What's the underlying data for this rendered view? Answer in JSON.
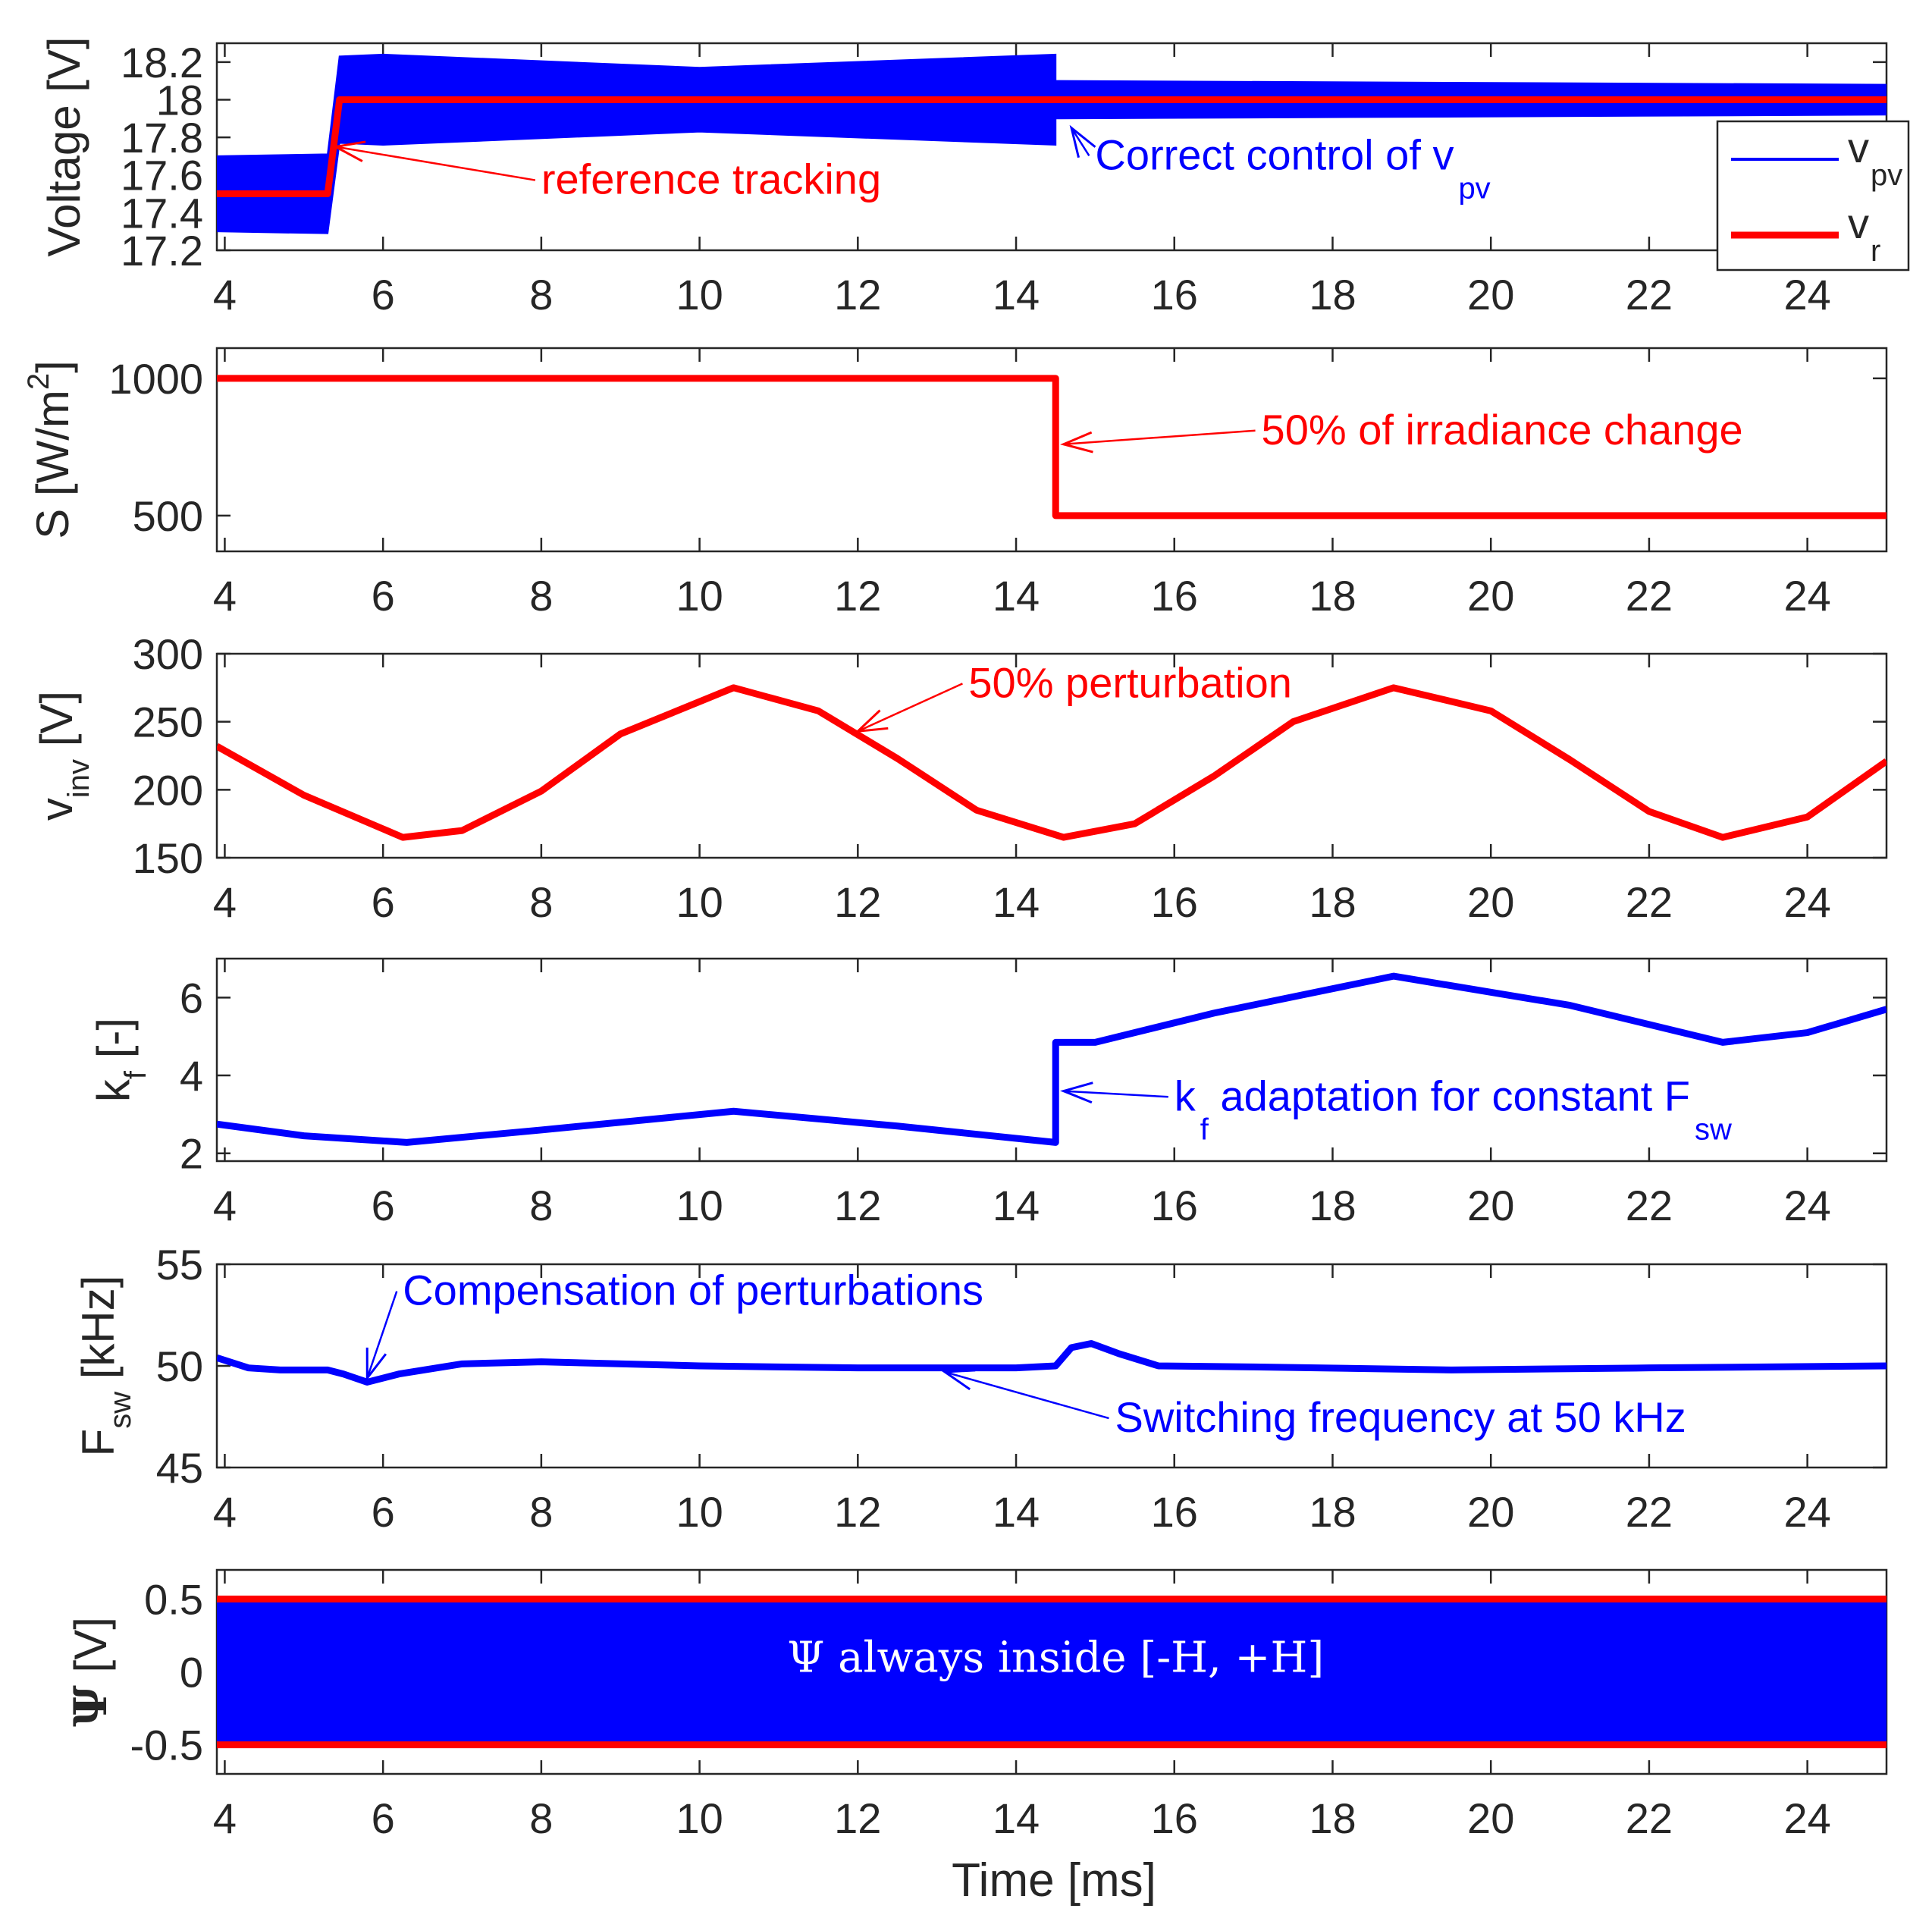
{
  "colors": {
    "blue": "#0000FF",
    "red": "#FF0000",
    "axis": "#262626"
  },
  "chart_data": [
    {
      "type": "line",
      "id": "voltage",
      "ylabel": "Voltage [V]",
      "xlim": [
        3.9,
        25
      ],
      "ylim": [
        17.2,
        18.3
      ],
      "xticks": [
        4,
        6,
        8,
        10,
        12,
        14,
        16,
        18,
        20,
        22,
        24
      ],
      "yticks": [
        17.2,
        17.4,
        17.6,
        17.8,
        18,
        18.2
      ],
      "ytick_labels": [
        "17.2",
        "17.4",
        "17.6",
        "17.8",
        "18",
        "18.2"
      ],
      "series": [
        {
          "name": "vpv",
          "label_main": "v",
          "label_sub": "pv",
          "color": "#0000FF",
          "style": "ripple-band",
          "x": [
            3.9,
            5.3,
            5.3,
            5.45,
            6.0,
            10.0,
            14.5,
            14.5,
            25.0
          ],
          "center": [
            17.5,
            17.5,
            17.5,
            18.0,
            18.0,
            18.0,
            18.0,
            18.0,
            18.0
          ],
          "half_width": [
            0.2,
            0.21,
            0.21,
            0.23,
            0.24,
            0.17,
            0.24,
            0.1,
            0.08
          ]
        },
        {
          "name": "vr",
          "label_main": "v",
          "label_sub": "r",
          "color": "#FF0000",
          "x": [
            3.9,
            5.3,
            5.45,
            25.0
          ],
          "y": [
            17.5,
            17.5,
            18.0,
            18.0
          ]
        }
      ],
      "annotations": [
        {
          "id": "reference-tracking",
          "text": "reference tracking",
          "color": "#FF0000",
          "x": 8.0,
          "y": 17.5,
          "arrow_to": [
            5.4,
            17.75
          ]
        },
        {
          "id": "correct-control",
          "text": "Correct control of v",
          "sub": "pv",
          "color": "#0000FF",
          "x": 15.0,
          "y": 17.63,
          "arrow_to": [
            14.7,
            17.85
          ]
        }
      ],
      "legend": {
        "position": "top-right"
      }
    },
    {
      "type": "line",
      "id": "irradiance",
      "ylabel_main": "S [W/m",
      "ylabel_sup": "2",
      "ylabel_end": "]",
      "xlim": [
        3.9,
        25
      ],
      "ylim": [
        370,
        1110
      ],
      "xticks": [
        4,
        6,
        8,
        10,
        12,
        14,
        16,
        18,
        20,
        22,
        24
      ],
      "yticks": [
        500,
        1000
      ],
      "ytick_labels": [
        "500",
        "1000"
      ],
      "series": [
        {
          "name": "S",
          "color": "#FF0000",
          "x": [
            3.9,
            14.5,
            14.5,
            25.0
          ],
          "y": [
            1000,
            1000,
            500,
            500
          ]
        }
      ],
      "annotations": [
        {
          "id": "irradiance-change",
          "text": "50% of irradiance change",
          "color": "#FF0000",
          "x": 17.1,
          "y": 760,
          "arrow_to": [
            14.6,
            760
          ]
        }
      ]
    },
    {
      "type": "line",
      "id": "vinv",
      "ylabel_main": "v",
      "ylabel_sub": "inv",
      "ylabel_end": " [V]",
      "xlim": [
        3.9,
        25
      ],
      "ylim": [
        150,
        300
      ],
      "xticks": [
        4,
        6,
        8,
        10,
        12,
        14,
        16,
        18,
        20,
        22,
        24
      ],
      "yticks": [
        150,
        200,
        250,
        300
      ],
      "ytick_labels": [
        "150",
        "200",
        "250",
        "300"
      ],
      "series": [
        {
          "name": "vinv",
          "color": "#FF0000",
          "x": [
            3.9,
            5.0,
            6.25,
            7.0,
            8.0,
            9.0,
            10.43,
            11.5,
            12.5,
            13.5,
            14.6,
            15.5,
            16.5,
            17.5,
            18.77,
            20.0,
            21.0,
            22.0,
            22.93,
            24.0,
            25.0
          ],
          "y": [
            232,
            196,
            165,
            170,
            199,
            241,
            275,
            258,
            223,
            185,
            165,
            175,
            210,
            250,
            275,
            258,
            222,
            184,
            165,
            180,
            221
          ]
        }
      ],
      "annotations": [
        {
          "id": "perturbation",
          "text": "50% perturbation",
          "color": "#FF0000",
          "x": 13.4,
          "y": 268,
          "arrow_to": [
            12.0,
            243
          ]
        }
      ]
    },
    {
      "type": "line",
      "id": "kf",
      "ylabel_main": "k",
      "ylabel_sub": "f",
      "ylabel_end": " [-]",
      "xlim": [
        3.9,
        25
      ],
      "ylim": [
        1.8,
        7.0
      ],
      "xticks": [
        4,
        6,
        8,
        10,
        12,
        14,
        16,
        18,
        20,
        22,
        24
      ],
      "yticks": [
        2,
        4,
        6
      ],
      "ytick_labels": [
        "2",
        "4",
        "6"
      ],
      "series": [
        {
          "name": "kf",
          "color": "#0000FF",
          "x": [
            3.9,
            5.0,
            6.3,
            8.0,
            10.43,
            12.5,
            14.5,
            14.5,
            15.0,
            16.5,
            18.77,
            21.0,
            22.93,
            24.0,
            25.0
          ],
          "y": [
            2.75,
            2.45,
            2.28,
            2.6,
            3.08,
            2.7,
            2.28,
            4.85,
            4.85,
            5.6,
            6.55,
            5.8,
            4.85,
            5.1,
            5.7
          ]
        }
      ],
      "annotations": [
        {
          "id": "kf-adaptation",
          "text": "k",
          "sub": "f",
          "text2": " adaptation for constant F",
          "sub2": "sw",
          "color": "#0000FF",
          "x": 16.0,
          "y": 3.1,
          "arrow_to": [
            14.6,
            3.6
          ]
        }
      ]
    },
    {
      "type": "line",
      "id": "fsw",
      "ylabel_main": "F",
      "ylabel_sub": "sw",
      "ylabel_end": " [kHz]",
      "xlim": [
        3.9,
        25
      ],
      "ylim": [
        45,
        55
      ],
      "xticks": [
        4,
        6,
        8,
        10,
        12,
        14,
        16,
        18,
        20,
        22,
        24
      ],
      "yticks": [
        45,
        50,
        55
      ],
      "ytick_labels": [
        "45",
        "50",
        "55"
      ],
      "series": [
        {
          "name": "Fsw",
          "color": "#0000FF",
          "x": [
            3.9,
            4.3,
            4.7,
            5.3,
            5.5,
            5.8,
            6.2,
            7.0,
            8.0,
            10.0,
            12.0,
            14.0,
            14.5,
            14.7,
            14.95,
            15.3,
            15.8,
            17.0,
            19.5,
            22.0,
            25.0
          ],
          "y": [
            50.4,
            49.9,
            49.8,
            49.8,
            49.6,
            49.2,
            49.6,
            50.1,
            50.2,
            50.0,
            49.9,
            49.9,
            50.0,
            50.9,
            51.1,
            50.6,
            50.0,
            49.95,
            49.8,
            49.9,
            50.0
          ]
        }
      ],
      "annotations": [
        {
          "id": "compensation",
          "text": "Compensation of perturbations",
          "color": "#0000FF",
          "x": 6.25,
          "y": 53.0,
          "arrow_to": [
            5.8,
            49.4
          ]
        },
        {
          "id": "switching-frequency",
          "text": "Switching frequency at 50 kHz",
          "color": "#0000FF",
          "x": 15.25,
          "y": 46.75,
          "arrow_to": [
            13.1,
            49.7
          ]
        }
      ]
    },
    {
      "type": "line",
      "id": "psi",
      "ylabel_main": "Ψ",
      "ylabel_end": " [V]",
      "xlabel": "Time [ms]",
      "xlim": [
        3.9,
        25
      ],
      "ylim": [
        -0.7,
        0.7
      ],
      "xticks": [
        4,
        6,
        8,
        10,
        12,
        14,
        16,
        18,
        20,
        22,
        24
      ],
      "yticks": [
        -0.5,
        0,
        0.5
      ],
      "ytick_labels": [
        "-0.5",
        "0",
        "0.5"
      ],
      "series": [
        {
          "name": "psi",
          "color": "#0000FF",
          "style": "band",
          "x": [
            3.9,
            25.0
          ],
          "y_low": [
            -0.5,
            -0.5
          ],
          "y_high": [
            0.5,
            0.5
          ]
        },
        {
          "name": "+H",
          "color": "#FF0000",
          "x": [
            3.9,
            25.0
          ],
          "y": [
            0.5,
            0.5
          ]
        },
        {
          "name": "-H",
          "color": "#FF0000",
          "x": [
            3.9,
            25.0
          ],
          "y": [
            -0.5,
            -0.5
          ]
        }
      ],
      "annotations": [
        {
          "id": "psi-inside",
          "text": "Ψ always inside [-H, +H]",
          "color": "#FFFFFF",
          "x": 14.5,
          "y": 0.0
        }
      ]
    }
  ]
}
